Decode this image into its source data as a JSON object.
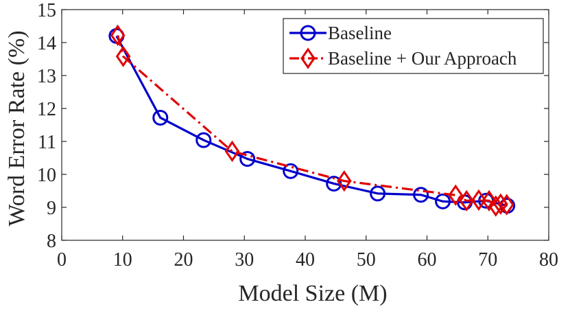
{
  "chart_data": {
    "type": "line",
    "title": "",
    "xlabel": "Model Size (M)",
    "ylabel": "Word Error Rate (%)",
    "xlim": [
      0,
      80
    ],
    "ylim": [
      8,
      15
    ],
    "xticks": [
      0,
      10,
      20,
      30,
      40,
      50,
      60,
      70,
      80
    ],
    "yticks": [
      8,
      9,
      10,
      11,
      12,
      13,
      14,
      15
    ],
    "grid": false,
    "legend_position": "top-right",
    "series": [
      {
        "name": "Baseline",
        "color": "#0000cc",
        "line_style": "solid",
        "marker": "circle",
        "x": [
          9.0,
          16.2,
          23.3,
          30.5,
          37.6,
          44.7,
          51.9,
          59.0,
          62.6,
          66.2,
          69.7,
          73.2
        ],
        "y": [
          14.2,
          11.72,
          11.04,
          10.47,
          10.1,
          9.72,
          9.42,
          9.38,
          9.18,
          9.15,
          9.2,
          9.05
        ]
      },
      {
        "name": "Baseline + Our Approach",
        "color": "#e00000",
        "line_style": "dashdot",
        "marker": "diamond",
        "x": [
          9.2,
          10.1,
          28.0,
          46.4,
          64.7,
          66.5,
          68.5,
          70.2,
          71.3,
          72.1,
          73.1
        ],
        "y": [
          14.22,
          13.58,
          10.7,
          9.8,
          9.37,
          9.2,
          9.22,
          9.2,
          9.04,
          9.1,
          9.08
        ]
      }
    ]
  }
}
